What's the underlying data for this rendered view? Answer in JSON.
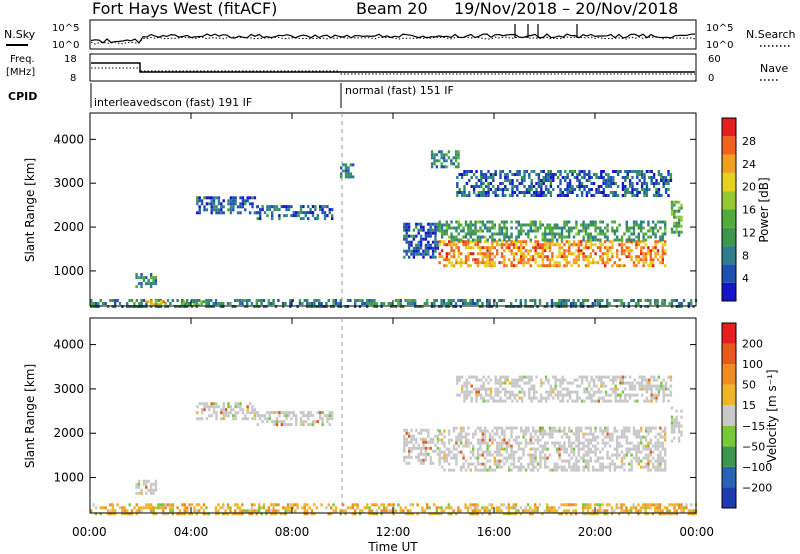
{
  "header": {
    "station": "Fort Hays West (fitACF)",
    "beam": "Beam 20",
    "dates": "19/Nov/2018 – 20/Nov/2018"
  },
  "noise_panel": {
    "left_label": "N.Sky",
    "right_label": "N.Search",
    "ticks": [
      "10^5",
      "10^0"
    ]
  },
  "freq_panel": {
    "left_label_line1": "Freq.",
    "left_label_line2": "[MHz]",
    "left_ticks": [
      "18",
      "8"
    ],
    "right_label": "Nave",
    "right_ticks": [
      "60",
      "0"
    ]
  },
  "cpid": {
    "label": "CPID",
    "segments": [
      {
        "text": "interleavedscon (fast) 191 IF",
        "start_hour": 0,
        "end_hour": 10
      },
      {
        "text": "normal (fast) 151 IF",
        "start_hour": 10,
        "end_hour": 24
      }
    ]
  },
  "chart_data": [
    {
      "type": "heatmap",
      "name": "power",
      "ylabel": "Slant Range [km]",
      "xlabel": "Time UT",
      "xlim_hours": [
        0,
        24
      ],
      "ylim": [
        200,
        4600
      ],
      "yticks": [
        1000,
        2000,
        3000,
        4000
      ],
      "colorbar": {
        "label": "Power [dB]",
        "ticks": [
          "4",
          "8",
          "12",
          "16",
          "20",
          "24",
          "28"
        ],
        "colors": [
          "#1414c8",
          "#1e50b4",
          "#2d7d8c",
          "#3c9650",
          "#50aa3c",
          "#96c832",
          "#e6d21e",
          "#f0a01e",
          "#f0641e",
          "#e61e1e"
        ]
      },
      "echo_regions": [
        {
          "t0": 0.0,
          "t1": 24.0,
          "r0": 210,
          "r1": 360,
          "level": 0.25
        },
        {
          "t0": 2.2,
          "t1": 3.0,
          "r0": 230,
          "r1": 330,
          "level": 0.75
        },
        {
          "t0": 3.6,
          "t1": 4.6,
          "r0": 240,
          "r1": 330,
          "level": 0.4
        },
        {
          "t0": 1.8,
          "t1": 2.6,
          "r0": 650,
          "r1": 950,
          "level": 0.3
        },
        {
          "t0": 4.2,
          "t1": 6.6,
          "r0": 2350,
          "r1": 2700,
          "level": 0.15
        },
        {
          "t0": 6.6,
          "t1": 9.6,
          "r0": 2200,
          "r1": 2500,
          "level": 0.15
        },
        {
          "t0": 9.9,
          "t1": 10.4,
          "r0": 3150,
          "r1": 3450,
          "level": 0.2
        },
        {
          "t0": 12.4,
          "t1": 13.8,
          "r0": 1300,
          "r1": 2100,
          "level": 0.15
        },
        {
          "t0": 13.8,
          "t1": 22.8,
          "r0": 1150,
          "r1": 1700,
          "level": 0.8
        },
        {
          "t0": 13.8,
          "t1": 22.8,
          "r0": 1700,
          "r1": 2150,
          "level": 0.35
        },
        {
          "t0": 23.0,
          "t1": 23.4,
          "r0": 1800,
          "r1": 2600,
          "level": 0.4
        },
        {
          "t0": 13.5,
          "t1": 14.6,
          "r0": 3400,
          "r1": 3750,
          "level": 0.3
        },
        {
          "t0": 14.5,
          "t1": 23.0,
          "r0": 2700,
          "r1": 3300,
          "level": 0.15
        }
      ]
    },
    {
      "type": "heatmap",
      "name": "velocity",
      "ylabel": "Slant Range [km]",
      "xlabel": "Time UT",
      "xlim_hours": [
        0,
        24
      ],
      "ylim": [
        200,
        4600
      ],
      "yticks": [
        1000,
        2000,
        3000,
        4000
      ],
      "colorbar": {
        "label": "Velocity [m s⁻¹]",
        "ticks": [
          "200",
          "100",
          "50",
          "15",
          "−15",
          "−50",
          "−100",
          "−200"
        ],
        "colors": [
          "#1e3cb4",
          "#2864b4",
          "#3c9650",
          "#78c83c",
          "#c8c8c8",
          "#f0b428",
          "#f08c1e",
          "#e65a1e",
          "#e61e1e"
        ]
      },
      "echo_regions": [
        {
          "t0": 0.0,
          "t1": 24.0,
          "r0": 210,
          "r1": 420,
          "level": 0.3
        },
        {
          "t0": 1.8,
          "t1": 2.6,
          "r0": 650,
          "r1": 950,
          "level": 0.5
        },
        {
          "t0": 4.2,
          "t1": 6.6,
          "r0": 2350,
          "r1": 2700,
          "level": 0.5
        },
        {
          "t0": 6.6,
          "t1": 9.6,
          "r0": 2200,
          "r1": 2500,
          "level": 0.5
        },
        {
          "t0": 12.4,
          "t1": 13.8,
          "r0": 1300,
          "r1": 2100,
          "level": 0.5
        },
        {
          "t0": 13.8,
          "t1": 22.8,
          "r0": 1150,
          "r1": 2150,
          "level": 0.5
        },
        {
          "t0": 23.0,
          "t1": 23.4,
          "r0": 1800,
          "r1": 2600,
          "level": 0.5
        },
        {
          "t0": 14.5,
          "t1": 23.0,
          "r0": 2700,
          "r1": 3300,
          "level": 0.5
        }
      ]
    }
  ],
  "x_axis": {
    "label": "Time UT",
    "ticks": [
      "00:00",
      "04:00",
      "08:00",
      "12:00",
      "16:00",
      "20:00",
      "00:00"
    ]
  }
}
